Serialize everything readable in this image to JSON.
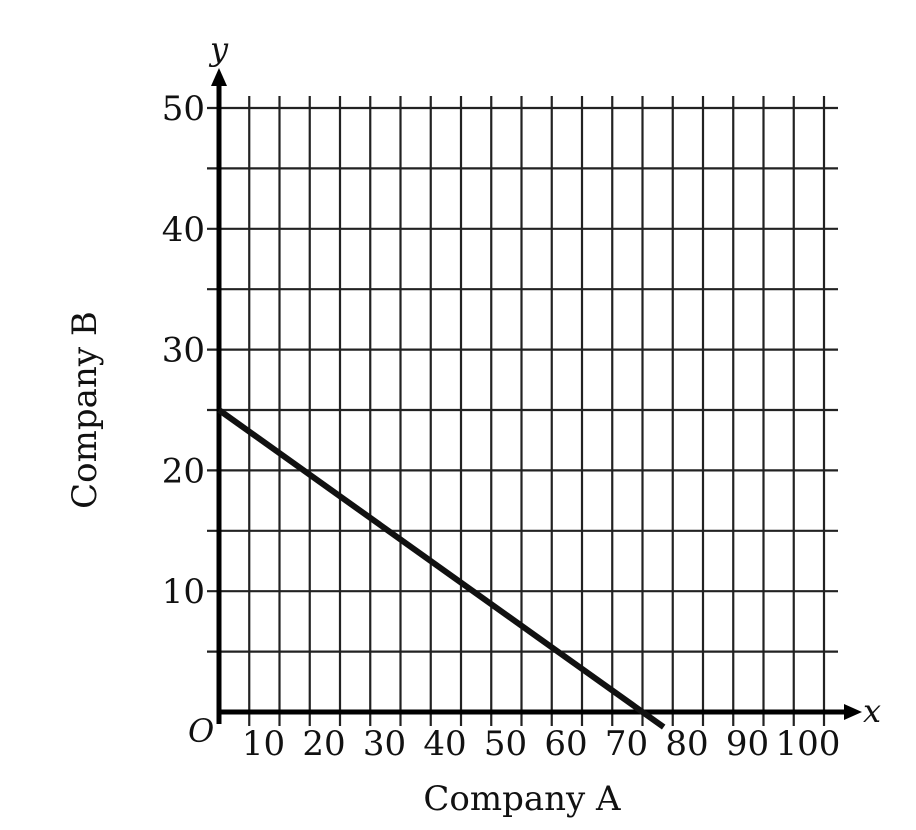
{
  "chart_data": {
    "type": "line",
    "title": "",
    "xlabel": "Company A",
    "ylabel": "Company B",
    "x_variable": "x",
    "y_variable": "y",
    "origin_label": "O",
    "xlim": [
      0,
      100
    ],
    "ylim": [
      0,
      50
    ],
    "x_ticks": [
      10,
      20,
      30,
      40,
      50,
      60,
      70,
      80,
      90,
      100
    ],
    "y_ticks": [
      10,
      20,
      30,
      40,
      50
    ],
    "x_grid_step": 5,
    "y_grid_step": 5,
    "grid": true,
    "line_color": "#111111",
    "series": [
      {
        "x": [
          0,
          70
        ],
        "y": [
          25,
          0
        ]
      }
    ]
  }
}
